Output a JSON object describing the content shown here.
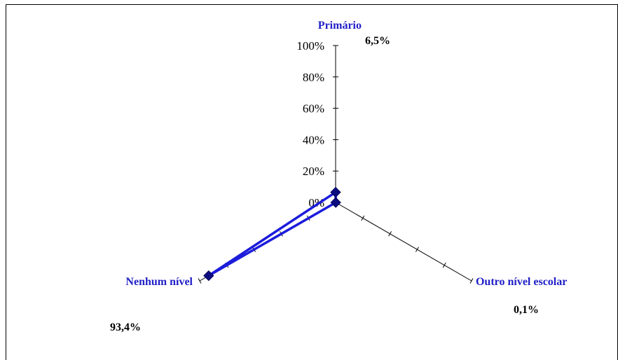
{
  "chart_data": {
    "type": "radar",
    "categories": [
      "Primário",
      "Outro nível escolar",
      "Nenhum nível"
    ],
    "series": [
      {
        "values": [
          6.5,
          0.1,
          93.4
        ]
      }
    ],
    "rlim": [
      0,
      100
    ],
    "r_ticks": [
      "0%",
      "20%",
      "40%",
      "60%",
      "80%",
      "100%"
    ],
    "value_labels": [
      "6,5%",
      "0,1%",
      "93,4%"
    ],
    "colors": {
      "series_line": "#1c1cdc",
      "marker": "#0d0d80",
      "category_label": "#2020c8"
    }
  }
}
